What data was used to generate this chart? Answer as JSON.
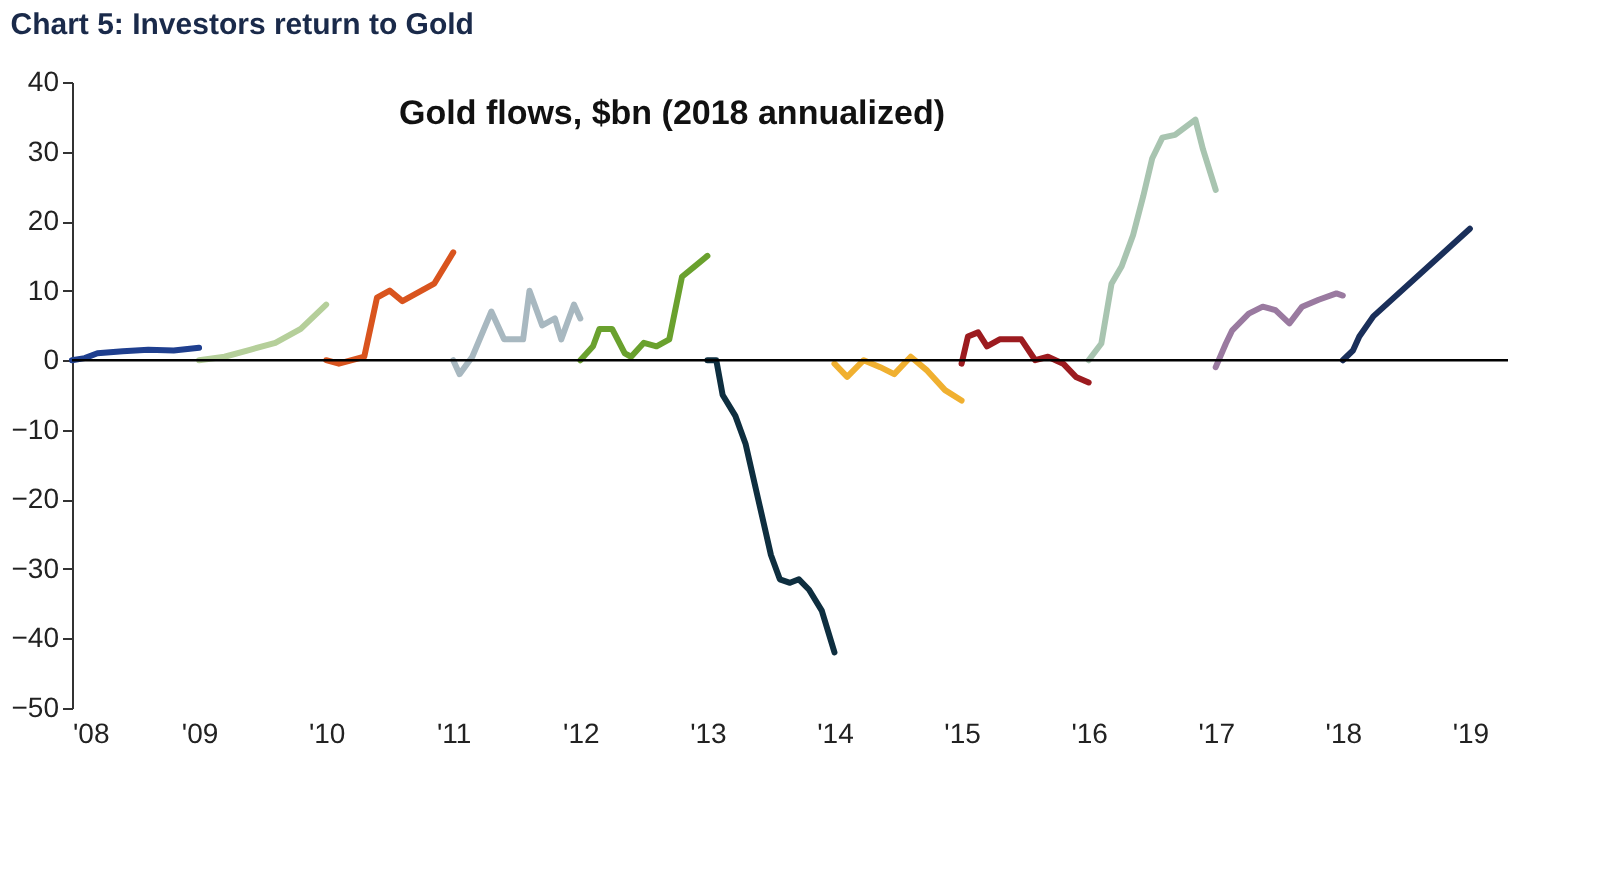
{
  "chart_data": {
    "type": "line",
    "title": "Chart 5: Investors return to Gold",
    "subtitle": "Gold flows, $bn (2018 annualized)",
    "xlim": [
      2008,
      2019.3
    ],
    "ylim": [
      -50,
      40
    ],
    "xticks": [
      {
        "value": 2008,
        "label": "'08"
      },
      {
        "value": 2009,
        "label": "'09"
      },
      {
        "value": 2010,
        "label": "'10"
      },
      {
        "value": 2011,
        "label": "'11"
      },
      {
        "value": 2012,
        "label": "'12"
      },
      {
        "value": 2013,
        "label": "'13"
      },
      {
        "value": 2014,
        "label": "'14"
      },
      {
        "value": 2015,
        "label": "'15"
      },
      {
        "value": 2016,
        "label": "'16"
      },
      {
        "value": 2017,
        "label": "'17"
      },
      {
        "value": 2018,
        "label": "'18"
      },
      {
        "value": 2019,
        "label": "'19"
      }
    ],
    "yticks": [
      -50,
      -40,
      -30,
      -20,
      -10,
      0,
      10,
      20,
      30,
      40
    ],
    "grid": false,
    "marker": "none",
    "line_style": "solid",
    "ref_lines": [
      {
        "axis": "y",
        "value": 0,
        "color": "#000000"
      }
    ],
    "series": [
      {
        "color": "#1f3f8f",
        "x": [
          2008.0,
          2008.1,
          2008.2,
          2008.4,
          2008.6,
          2008.8,
          2009.0
        ],
        "values": [
          0,
          0.3,
          1,
          1.3,
          1.5,
          1.4,
          1.8
        ]
      },
      {
        "color": "#b5cf9a",
        "x": [
          2009.0,
          2009.2,
          2009.4,
          2009.6,
          2009.8,
          2010.0
        ],
        "values": [
          0,
          0.5,
          1.5,
          2.5,
          4.5,
          8
        ]
      },
      {
        "color": "#d9541e",
        "x": [
          2010.0,
          2010.1,
          2010.3,
          2010.4,
          2010.5,
          2010.6,
          2010.7,
          2010.85,
          2011.0
        ],
        "values": [
          0,
          -0.5,
          0.5,
          9,
          10,
          8.5,
          9.5,
          11,
          15.5
        ]
      },
      {
        "color": "#a8b8c0",
        "x": [
          2011.0,
          2011.05,
          2011.15,
          2011.3,
          2011.4,
          2011.55,
          2011.6,
          2011.7,
          2011.8,
          2011.85,
          2011.95,
          2012.0
        ],
        "values": [
          0,
          -2,
          0.5,
          7,
          3,
          3,
          10,
          5,
          6,
          3,
          8,
          6
        ]
      },
      {
        "color": "#6aa12e",
        "x": [
          2012.0,
          2012.1,
          2012.15,
          2012.25,
          2012.35,
          2012.4,
          2012.5,
          2012.6,
          2012.7,
          2012.8,
          2012.9,
          2013.0
        ],
        "values": [
          0,
          2,
          4.5,
          4.5,
          1,
          0.5,
          2.5,
          2,
          3,
          12,
          13.5,
          15
        ]
      },
      {
        "color": "#0e2e3f",
        "x": [
          2013.0,
          2013.07,
          2013.12,
          2013.22,
          2013.3,
          2013.4,
          2013.5,
          2013.57,
          2013.65,
          2013.72,
          2013.8,
          2013.9,
          2014.0
        ],
        "values": [
          0,
          0,
          -5,
          -8,
          -12,
          -20,
          -28,
          -31.5,
          -32,
          -31.5,
          -33,
          -36,
          -42
        ]
      },
      {
        "color": "#f0b030",
        "x": [
          2014.0,
          2014.1,
          2014.23,
          2014.36,
          2014.47,
          2014.6,
          2014.73,
          2014.87,
          2015.0
        ],
        "values": [
          -0.5,
          -2.4,
          0,
          -1,
          -2,
          0.5,
          -1.5,
          -4.3,
          -5.8
        ]
      },
      {
        "color": "#9c1b1f",
        "x": [
          2015.0,
          2015.05,
          2015.13,
          2015.2,
          2015.3,
          2015.47,
          2015.58,
          2015.68,
          2015.8,
          2015.9,
          2016.0
        ],
        "values": [
          -0.5,
          3.4,
          4,
          2,
          3,
          3,
          0,
          0.5,
          -0.5,
          -2.4,
          -3.2
        ]
      },
      {
        "color": "#a8c4b0",
        "x": [
          2016.0,
          2016.1,
          2016.18,
          2016.26,
          2016.35,
          2016.43,
          2016.5,
          2016.58,
          2016.68,
          2016.84,
          2016.9,
          2017.0
        ],
        "values": [
          0,
          2.4,
          11,
          13.5,
          18,
          23.6,
          29,
          32,
          32.4,
          34.6,
          30.3,
          24.5
        ]
      },
      {
        "color": "#9a7aa0",
        "x": [
          2017.0,
          2017.08,
          2017.13,
          2017.26,
          2017.37,
          2017.47,
          2017.58,
          2017.68,
          2017.81,
          2017.95,
          2018.0
        ],
        "values": [
          -1,
          2.4,
          4.3,
          6.7,
          7.7,
          7.2,
          5.3,
          7.7,
          8.7,
          9.6,
          9.3
        ]
      },
      {
        "color": "#1a2f5a",
        "x": [
          2018.0,
          2018.08,
          2018.13,
          2018.24,
          2019.0
        ],
        "values": [
          0,
          1.4,
          3.4,
          6.3,
          18.9
        ]
      }
    ]
  }
}
